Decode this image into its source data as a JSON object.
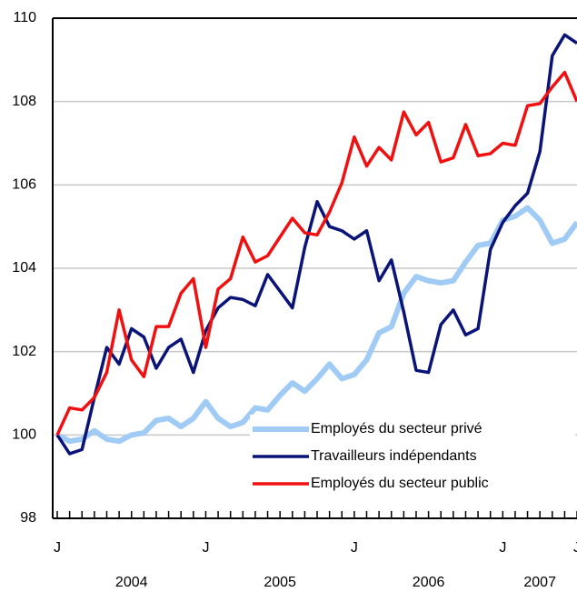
{
  "chart_data": {
    "type": "line",
    "categories": [
      "J",
      null,
      null,
      null,
      null,
      null,
      null,
      null,
      null,
      null,
      null,
      null,
      "J",
      null,
      null,
      null,
      null,
      null,
      null,
      null,
      null,
      null,
      null,
      null,
      "J",
      null,
      null,
      null,
      null,
      null,
      null,
      null,
      null,
      null,
      null,
      null,
      "J",
      null,
      null,
      null,
      null,
      null,
      "J"
    ],
    "year_labels": [
      "2004",
      "2005",
      "2006",
      "2007"
    ],
    "series": [
      {
        "name": "Employés du secteur privé",
        "color": "#9fcbf5",
        "values": [
          100,
          99.85,
          99.9,
          100.1,
          99.9,
          99.85,
          100.0,
          100.05,
          100.35,
          100.4,
          100.2,
          100.4,
          100.8,
          100.4,
          100.2,
          100.3,
          100.65,
          100.6,
          100.95,
          101.25,
          101.05,
          101.35,
          101.7,
          101.35,
          101.45,
          101.8,
          102.45,
          102.6,
          103.4,
          103.8,
          103.7,
          103.65,
          103.7,
          104.15,
          104.55,
          104.6,
          105.15,
          105.25,
          105.45,
          105.15,
          104.6,
          104.7,
          105.1
        ]
      },
      {
        "name": "Travailleurs indépendants",
        "color": "#0a1478",
        "values": [
          100,
          99.55,
          99.65,
          100.9,
          102.1,
          101.7,
          102.55,
          102.35,
          101.6,
          102.1,
          102.3,
          101.5,
          102.5,
          103.05,
          103.3,
          103.25,
          103.1,
          103.85,
          103.45,
          103.05,
          104.5,
          105.6,
          105.0,
          104.9,
          104.7,
          104.9,
          103.7,
          104.2,
          102.95,
          101.55,
          101.5,
          102.65,
          103.0,
          102.4,
          102.55,
          104.45,
          105.1,
          105.5,
          105.8,
          106.8,
          109.1,
          109.6,
          109.4
        ]
      },
      {
        "name": "Employés du secteur public",
        "color": "#f01010",
        "values": [
          100,
          100.65,
          100.6,
          100.9,
          101.5,
          103.0,
          101.8,
          101.4,
          102.6,
          102.6,
          103.4,
          103.75,
          102.1,
          103.5,
          103.75,
          104.75,
          104.15,
          104.3,
          104.75,
          105.2,
          104.85,
          104.8,
          105.35,
          106.05,
          107.15,
          106.45,
          106.9,
          106.6,
          107.75,
          107.2,
          107.5,
          106.55,
          106.65,
          107.45,
          106.7,
          106.75,
          107.0,
          106.95,
          107.9,
          107.95,
          108.35,
          108.7,
          108.0
        ]
      }
    ],
    "ylim": [
      98,
      110
    ],
    "yticks": [
      98,
      100,
      102,
      104,
      106,
      108,
      110
    ],
    "grid": true,
    "legend": "lower right"
  }
}
